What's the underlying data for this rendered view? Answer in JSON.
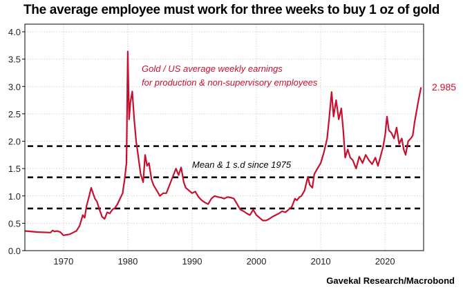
{
  "chart_data": {
    "type": "line",
    "title": "The average employee must work for three weeks to buy 1 oz of gold",
    "source": "Gavekal Research/Macrobond",
    "xlabel": "",
    "ylabel": "",
    "xlim": [
      1964,
      2026
    ],
    "ylim": [
      0,
      4
    ],
    "x_ticks": [
      1970,
      1980,
      1990,
      2000,
      2010,
      2020
    ],
    "y_ticks": [
      "0.0",
      "0.5",
      "1.0",
      "1.5",
      "2.0",
      "2.5",
      "3.0",
      "3.5",
      "4.0"
    ],
    "y_tick_values": [
      0,
      0.5,
      1.0,
      1.5,
      2.0,
      2.5,
      3.0,
      3.5,
      4.0
    ],
    "grid": true,
    "series": [
      {
        "name": "Gold / US average weekly earnings for production & non-supervisory employees",
        "label_line1": "Gold / US average weekly earnings",
        "label_line2": "for production & non-supervisory employees",
        "color": "#c8102e",
        "last_value_label": "2.985",
        "x": [
          1964.0,
          1966.0,
          1968.0,
          1968.3,
          1968.6,
          1969.0,
          1969.5,
          1970.0,
          1970.5,
          1971.0,
          1971.5,
          1972.0,
          1972.5,
          1973.0,
          1973.3,
          1973.6,
          1974.0,
          1974.3,
          1974.6,
          1974.9,
          1975.2,
          1975.6,
          1976.0,
          1976.4,
          1976.8,
          1977.2,
          1977.6,
          1978.0,
          1978.4,
          1978.8,
          1979.2,
          1979.5,
          1979.8,
          1980.0,
          1980.2,
          1980.4,
          1980.7,
          1981.0,
          1981.3,
          1981.6,
          1982.0,
          1982.4,
          1982.7,
          1983.0,
          1983.3,
          1983.7,
          1984.0,
          1984.5,
          1985.0,
          1985.5,
          1986.0,
          1986.5,
          1987.0,
          1987.5,
          1987.9,
          1988.3,
          1988.7,
          1989.0,
          1989.5,
          1990.0,
          1990.5,
          1991.0,
          1991.5,
          1992.0,
          1992.5,
          1993.0,
          1993.5,
          1994.0,
          1994.5,
          1995.0,
          1995.5,
          1996.0,
          1996.5,
          1997.0,
          1997.5,
          1998.0,
          1998.5,
          1999.0,
          1999.5,
          2000.0,
          2000.5,
          2001.0,
          2001.5,
          2002.0,
          2002.5,
          2003.0,
          2003.5,
          2004.0,
          2004.5,
          2005.0,
          2005.5,
          2006.0,
          2006.3,
          2006.7,
          2007.0,
          2007.5,
          2008.0,
          2008.3,
          2008.7,
          2009.0,
          2009.5,
          2010.0,
          2010.5,
          2011.0,
          2011.3,
          2011.7,
          2012.0,
          2012.4,
          2012.8,
          2013.2,
          2013.5,
          2013.8,
          2014.2,
          2014.6,
          2015.0,
          2015.5,
          2016.0,
          2016.5,
          2017.0,
          2017.5,
          2018.0,
          2018.5,
          2018.9,
          2019.3,
          2019.7,
          2020.0,
          2020.3,
          2020.6,
          2021.0,
          2021.4,
          2021.8,
          2022.2,
          2022.6,
          2022.9,
          2023.2,
          2023.6,
          2024.0,
          2024.3,
          2024.6,
          2024.9,
          2025.2,
          2025.6
        ],
        "values": [
          0.36,
          0.34,
          0.33,
          0.37,
          0.35,
          0.36,
          0.34,
          0.28,
          0.29,
          0.3,
          0.33,
          0.36,
          0.45,
          0.65,
          0.6,
          0.82,
          1.0,
          1.15,
          1.05,
          0.95,
          0.9,
          0.75,
          0.62,
          0.58,
          0.7,
          0.68,
          0.75,
          0.78,
          0.85,
          0.95,
          1.05,
          1.3,
          1.6,
          3.64,
          2.4,
          2.7,
          2.91,
          2.4,
          2.0,
          1.75,
          1.4,
          1.25,
          1.75,
          1.55,
          1.6,
          1.3,
          1.2,
          1.1,
          1.0,
          1.05,
          1.05,
          1.2,
          1.35,
          1.5,
          1.38,
          1.52,
          1.25,
          1.15,
          1.1,
          1.05,
          1.08,
          0.98,
          0.92,
          0.88,
          0.85,
          0.95,
          1.0,
          0.98,
          0.97,
          0.95,
          0.98,
          0.97,
          0.95,
          0.85,
          0.75,
          0.72,
          0.68,
          0.65,
          0.75,
          0.65,
          0.6,
          0.55,
          0.55,
          0.58,
          0.62,
          0.65,
          0.68,
          0.72,
          0.7,
          0.75,
          0.8,
          0.95,
          0.92,
          0.98,
          1.0,
          1.1,
          1.35,
          1.2,
          1.15,
          1.4,
          1.5,
          1.6,
          1.8,
          2.05,
          2.4,
          2.9,
          2.45,
          2.75,
          2.4,
          2.6,
          2.2,
          1.7,
          1.85,
          1.7,
          1.65,
          1.5,
          1.72,
          1.6,
          1.75,
          1.65,
          1.58,
          1.7,
          1.55,
          1.72,
          1.9,
          2.1,
          2.45,
          2.2,
          2.15,
          2.05,
          2.25,
          1.95,
          2.05,
          1.85,
          1.75,
          2.0,
          2.05,
          2.1,
          2.35,
          2.55,
          2.75,
          2.985
        ]
      }
    ],
    "reference_lines": {
      "label": "Mean & 1 s.d since 1975",
      "values": [
        1.91,
        1.34,
        0.77
      ],
      "style": "dashed",
      "color": "#000000"
    }
  }
}
